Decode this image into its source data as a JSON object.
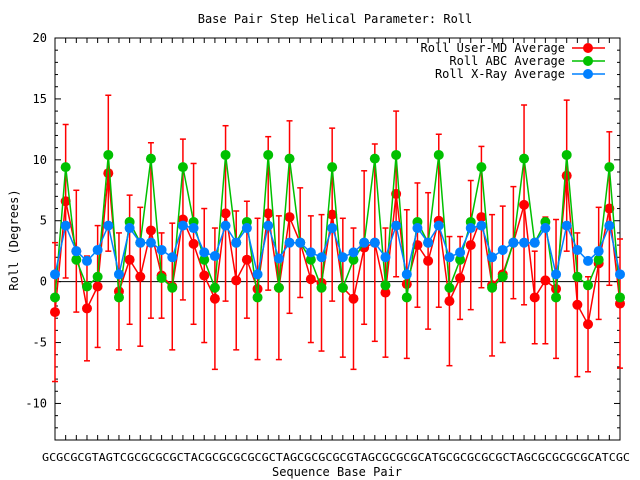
{
  "chart_data": {
    "type": "line",
    "title": "Base Pair Step Helical Parameter: Roll",
    "xlabel": "Sequence Base Pair",
    "ylabel": "Roll (Degrees)",
    "ylim": [
      -13,
      20
    ],
    "yticks": [
      -10,
      -5,
      0,
      5,
      10,
      15,
      20
    ],
    "x_tick_labels_text": "GCGCGCGTAGTCGCGCGCGCTACGCGCGCGCGCTAGCGCGCGCGTAGCGCGCGCATGCGCGCGCGCTAGCGCGCGCGCATCGC",
    "grid": false,
    "legend_position": "top-right",
    "series": [
      {
        "name": "Roll User-MD Average",
        "color": "#ff0000",
        "values": [
          -2.5,
          6.6,
          2.5,
          -2.2,
          -0.4,
          8.9,
          -0.8,
          1.8,
          0.4,
          4.2,
          0.5,
          -0.4,
          5.1,
          3.1,
          0.5,
          -1.4,
          5.6,
          0.1,
          1.8,
          -0.6,
          5.6,
          -0.5,
          5.3,
          3.2,
          0.2,
          -0.1,
          5.5,
          -0.5,
          -1.4,
          2.8,
          3.2,
          -0.9,
          7.2,
          -0.2,
          3.0,
          1.7,
          5.0,
          -1.6,
          0.3,
          3.0,
          5.3,
          -0.3,
          0.6,
          3.2,
          6.3,
          -1.3,
          0.1,
          -0.6,
          8.7,
          -1.9,
          -3.5,
          1.5,
          6.0,
          -1.8
        ],
        "errors": [
          5.7,
          6.3,
          5.0,
          4.3,
          5.0,
          6.4,
          4.8,
          5.3,
          5.7,
          7.2,
          3.5,
          5.2,
          6.6,
          6.6,
          5.5,
          5.8,
          7.2,
          5.7,
          4.8,
          5.8,
          6.3,
          5.9,
          7.9,
          4.5,
          5.2,
          5.6,
          7.1,
          5.7,
          5.8,
          6.3,
          8.1,
          5.3,
          6.8,
          6.1,
          5.1,
          5.6,
          7.1,
          5.3,
          3.4,
          5.3,
          5.8,
          5.8,
          5.6,
          4.6,
          8.2,
          3.8,
          5.2,
          5.7,
          6.2,
          5.9,
          3.9,
          4.6,
          6.3,
          5.3
        ]
      },
      {
        "name": "Roll ABC Average",
        "color": "#00c000",
        "values": [
          -1.3,
          9.4,
          1.8,
          -0.4,
          0.4,
          10.4,
          -1.3,
          4.9,
          3.2,
          10.1,
          0.3,
          -0.5,
          9.4,
          4.9,
          1.8,
          -0.5,
          10.4,
          3.2,
          4.9,
          -1.3,
          10.4,
          -0.5,
          10.1,
          3.2,
          1.8,
          -0.5,
          9.4,
          -0.5,
          1.8,
          3.2,
          10.1,
          -0.3,
          10.4,
          -1.3,
          4.9,
          3.2,
          10.4,
          -0.5,
          1.8,
          4.9,
          9.4,
          -0.5,
          0.4,
          3.2,
          10.1,
          3.2,
          4.9,
          -1.3,
          10.4,
          0.4,
          -0.3,
          1.8,
          9.4,
          -1.3
        ],
        "errors": []
      },
      {
        "name": "Roll X-Ray Average",
        "color": "#0080ff",
        "values": [
          0.6,
          4.6,
          2.5,
          1.7,
          2.6,
          4.6,
          0.6,
          4.4,
          3.2,
          3.2,
          2.6,
          2.0,
          4.6,
          4.4,
          2.4,
          2.1,
          4.6,
          3.2,
          4.4,
          0.6,
          4.6,
          1.9,
          3.2,
          3.2,
          2.4,
          2.0,
          4.4,
          2.0,
          2.4,
          3.2,
          3.2,
          2.0,
          4.6,
          0.6,
          4.4,
          3.2,
          4.6,
          2.0,
          2.4,
          4.4,
          4.6,
          2.0,
          2.6,
          3.2,
          3.2,
          3.2,
          4.4,
          0.6,
          4.6,
          2.6,
          1.7,
          2.5,
          4.6,
          0.6
        ],
        "errors": []
      }
    ]
  }
}
